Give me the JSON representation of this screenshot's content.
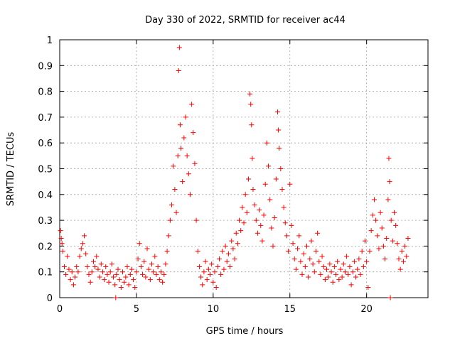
{
  "chart_data": {
    "type": "scatter",
    "title": "Day 330 of 2022, SRMTID for receiver ac44",
    "xlabel": "GPS time / hours",
    "ylabel": "SRMTID / TECUs",
    "xlim": [
      0,
      24
    ],
    "ylim": [
      0,
      1
    ],
    "x_ticks": [
      0,
      5,
      10,
      15,
      20
    ],
    "y_ticks": [
      0,
      0.1,
      0.2,
      0.3,
      0.4,
      0.5,
      0.6,
      0.7,
      0.8,
      0.9,
      1
    ],
    "x_tick_labels": [
      "0",
      "5",
      "10",
      "15",
      "20"
    ],
    "y_tick_labels": [
      "0",
      "0.1",
      "0.2",
      "0.3",
      "0.4",
      "0.5",
      "0.6",
      "0.7",
      "0.8",
      "0.9",
      "1"
    ],
    "grid": true,
    "marker": "+",
    "marker_color": "#ff0000",
    "series": [
      {
        "name": "SRMTID",
        "points": [
          [
            0.05,
            0.26
          ],
          [
            0.1,
            0.23
          ],
          [
            0.15,
            0.21
          ],
          [
            0.2,
            0.18
          ],
          [
            0.3,
            0.12
          ],
          [
            0.4,
            0.09
          ],
          [
            0.5,
            0.16
          ],
          [
            0.6,
            0.11
          ],
          [
            0.7,
            0.07
          ],
          [
            0.8,
            0.1
          ],
          [
            0.9,
            0.05
          ],
          [
            1.0,
            0.08
          ],
          [
            1.1,
            0.12
          ],
          [
            1.2,
            0.1
          ],
          [
            1.3,
            0.16
          ],
          [
            1.4,
            0.19
          ],
          [
            1.5,
            0.21
          ],
          [
            1.6,
            0.24
          ],
          [
            1.7,
            0.17
          ],
          [
            1.8,
            0.12
          ],
          [
            1.9,
            0.09
          ],
          [
            2.0,
            0.06
          ],
          [
            2.1,
            0.1
          ],
          [
            2.2,
            0.14
          ],
          [
            2.3,
            0.12
          ],
          [
            2.4,
            0.16
          ],
          [
            2.5,
            0.11
          ],
          [
            2.6,
            0.08
          ],
          [
            2.7,
            0.13
          ],
          [
            2.8,
            0.1
          ],
          [
            2.9,
            0.07
          ],
          [
            3.0,
            0.12
          ],
          [
            3.1,
            0.09
          ],
          [
            3.2,
            0.06
          ],
          [
            3.3,
            0.1
          ],
          [
            3.4,
            0.13
          ],
          [
            3.5,
            0.08
          ],
          [
            3.6,
            0.05
          ],
          [
            3.65,
            0.0
          ],
          [
            3.7,
            0.09
          ],
          [
            3.8,
            0.11
          ],
          [
            3.9,
            0.07
          ],
          [
            4.0,
            0.04
          ],
          [
            4.1,
            0.1
          ],
          [
            4.2,
            0.06
          ],
          [
            4.3,
            0.08
          ],
          [
            4.4,
            0.12
          ],
          [
            4.5,
            0.05
          ],
          [
            4.6,
            0.09
          ],
          [
            4.7,
            0.11
          ],
          [
            4.8,
            0.07
          ],
          [
            4.9,
            0.04
          ],
          [
            5.0,
            0.1
          ],
          [
            5.1,
            0.15
          ],
          [
            5.2,
            0.21
          ],
          [
            5.3,
            0.12
          ],
          [
            5.4,
            0.09
          ],
          [
            5.5,
            0.14
          ],
          [
            5.6,
            0.08
          ],
          [
            5.7,
            0.19
          ],
          [
            5.8,
            0.11
          ],
          [
            5.9,
            0.07
          ],
          [
            6.0,
            0.13
          ],
          [
            6.1,
            0.1
          ],
          [
            6.2,
            0.16
          ],
          [
            6.3,
            0.09
          ],
          [
            6.4,
            0.12
          ],
          [
            6.5,
            0.07
          ],
          [
            6.6,
            0.1
          ],
          [
            6.7,
            0.06
          ],
          [
            6.8,
            0.09
          ],
          [
            6.9,
            0.13
          ],
          [
            7.0,
            0.18
          ],
          [
            7.1,
            0.24
          ],
          [
            7.2,
            0.3
          ],
          [
            7.3,
            0.36
          ],
          [
            7.4,
            0.51
          ],
          [
            7.5,
            0.42
          ],
          [
            7.6,
            0.33
          ],
          [
            7.7,
            0.55
          ],
          [
            7.75,
            0.88
          ],
          [
            7.8,
            0.97
          ],
          [
            7.85,
            0.67
          ],
          [
            7.9,
            0.58
          ],
          [
            8.0,
            0.45
          ],
          [
            8.1,
            0.62
          ],
          [
            8.2,
            0.7
          ],
          [
            8.3,
            0.55
          ],
          [
            8.4,
            0.48
          ],
          [
            8.5,
            0.4
          ],
          [
            8.6,
            0.75
          ],
          [
            8.7,
            0.64
          ],
          [
            8.8,
            0.52
          ],
          [
            8.9,
            0.3
          ],
          [
            9.0,
            0.18
          ],
          [
            9.1,
            0.12
          ],
          [
            9.2,
            0.08
          ],
          [
            9.3,
            0.05
          ],
          [
            9.4,
            0.1
          ],
          [
            9.5,
            0.14
          ],
          [
            9.6,
            0.07
          ],
          [
            9.7,
            0.11
          ],
          [
            9.8,
            0.09
          ],
          [
            9.9,
            0.13
          ],
          [
            10.0,
            0.06
          ],
          [
            10.1,
            0.1
          ],
          [
            10.2,
            0.04
          ],
          [
            10.3,
            0.12
          ],
          [
            10.4,
            0.15
          ],
          [
            10.5,
            0.09
          ],
          [
            10.6,
            0.18
          ],
          [
            10.7,
            0.11
          ],
          [
            10.8,
            0.2
          ],
          [
            10.9,
            0.14
          ],
          [
            11.0,
            0.17
          ],
          [
            11.1,
            0.12
          ],
          [
            11.2,
            0.22
          ],
          [
            11.3,
            0.19
          ],
          [
            11.4,
            0.15
          ],
          [
            11.5,
            0.25
          ],
          [
            11.6,
            0.21
          ],
          [
            11.7,
            0.3
          ],
          [
            11.8,
            0.26
          ],
          [
            11.9,
            0.35
          ],
          [
            12.0,
            0.29
          ],
          [
            12.1,
            0.4
          ],
          [
            12.2,
            0.33
          ],
          [
            12.3,
            0.46
          ],
          [
            12.4,
            0.79
          ],
          [
            12.45,
            0.75
          ],
          [
            12.5,
            0.67
          ],
          [
            12.55,
            0.54
          ],
          [
            12.6,
            0.42
          ],
          [
            12.7,
            0.36
          ],
          [
            12.8,
            0.3
          ],
          [
            12.9,
            0.25
          ],
          [
            13.0,
            0.34
          ],
          [
            13.1,
            0.28
          ],
          [
            13.2,
            0.22
          ],
          [
            13.3,
            0.32
          ],
          [
            13.4,
            0.44
          ],
          [
            13.5,
            0.6
          ],
          [
            13.6,
            0.51
          ],
          [
            13.7,
            0.38
          ],
          [
            13.8,
            0.27
          ],
          [
            13.9,
            0.2
          ],
          [
            14.0,
            0.31
          ],
          [
            14.1,
            0.46
          ],
          [
            14.2,
            0.72
          ],
          [
            14.25,
            0.65
          ],
          [
            14.3,
            0.58
          ],
          [
            14.4,
            0.5
          ],
          [
            14.5,
            0.42
          ],
          [
            14.6,
            0.35
          ],
          [
            14.7,
            0.29
          ],
          [
            14.8,
            0.24
          ],
          [
            14.9,
            0.18
          ],
          [
            15.0,
            0.44
          ],
          [
            15.1,
            0.28
          ],
          [
            15.2,
            0.21
          ],
          [
            15.3,
            0.15
          ],
          [
            15.4,
            0.11
          ],
          [
            15.5,
            0.19
          ],
          [
            15.6,
            0.24
          ],
          [
            15.7,
            0.14
          ],
          [
            15.8,
            0.09
          ],
          [
            15.9,
            0.17
          ],
          [
            16.0,
            0.12
          ],
          [
            16.1,
            0.2
          ],
          [
            16.2,
            0.08
          ],
          [
            16.3,
            0.15
          ],
          [
            16.4,
            0.22
          ],
          [
            16.5,
            0.13
          ],
          [
            16.6,
            0.1
          ],
          [
            16.7,
            0.18
          ],
          [
            16.8,
            0.25
          ],
          [
            16.9,
            0.14
          ],
          [
            17.0,
            0.09
          ],
          [
            17.1,
            0.16
          ],
          [
            17.2,
            0.12
          ],
          [
            17.3,
            0.07
          ],
          [
            17.4,
            0.11
          ],
          [
            17.5,
            0.08
          ],
          [
            17.6,
            0.13
          ],
          [
            17.7,
            0.1
          ],
          [
            17.8,
            0.06
          ],
          [
            17.9,
            0.12
          ],
          [
            18.0,
            0.09
          ],
          [
            18.1,
            0.14
          ],
          [
            18.2,
            0.07
          ],
          [
            18.3,
            0.11
          ],
          [
            18.4,
            0.08
          ],
          [
            18.5,
            0.13
          ],
          [
            18.6,
            0.1
          ],
          [
            18.7,
            0.16
          ],
          [
            18.8,
            0.09
          ],
          [
            18.9,
            0.12
          ],
          [
            19.0,
            0.05
          ],
          [
            19.1,
            0.1
          ],
          [
            19.2,
            0.14
          ],
          [
            19.3,
            0.08
          ],
          [
            19.4,
            0.11
          ],
          [
            19.5,
            0.15
          ],
          [
            19.6,
            0.09
          ],
          [
            19.7,
            0.18
          ],
          [
            19.8,
            0.12
          ],
          [
            19.9,
            0.22
          ],
          [
            20.0,
            0.14
          ],
          [
            20.1,
            0.04
          ],
          [
            20.2,
            0.18
          ],
          [
            20.3,
            0.26
          ],
          [
            20.4,
            0.32
          ],
          [
            20.5,
            0.38
          ],
          [
            20.6,
            0.3
          ],
          [
            20.7,
            0.24
          ],
          [
            20.8,
            0.19
          ],
          [
            20.9,
            0.33
          ],
          [
            21.0,
            0.27
          ],
          [
            21.1,
            0.2
          ],
          [
            21.2,
            0.15
          ],
          [
            21.3,
            0.23
          ],
          [
            21.4,
            0.38
          ],
          [
            21.45,
            0.54
          ],
          [
            21.5,
            0.45
          ],
          [
            21.55,
            0.0
          ],
          [
            21.6,
            0.3
          ],
          [
            21.7,
            0.22
          ],
          [
            21.8,
            0.33
          ],
          [
            21.9,
            0.28
          ],
          [
            22.0,
            0.21
          ],
          [
            22.1,
            0.15
          ],
          [
            22.2,
            0.11
          ],
          [
            22.3,
            0.18
          ],
          [
            22.4,
            0.14
          ],
          [
            22.5,
            0.2
          ],
          [
            22.6,
            0.16
          ],
          [
            22.7,
            0.23
          ]
        ]
      }
    ]
  }
}
